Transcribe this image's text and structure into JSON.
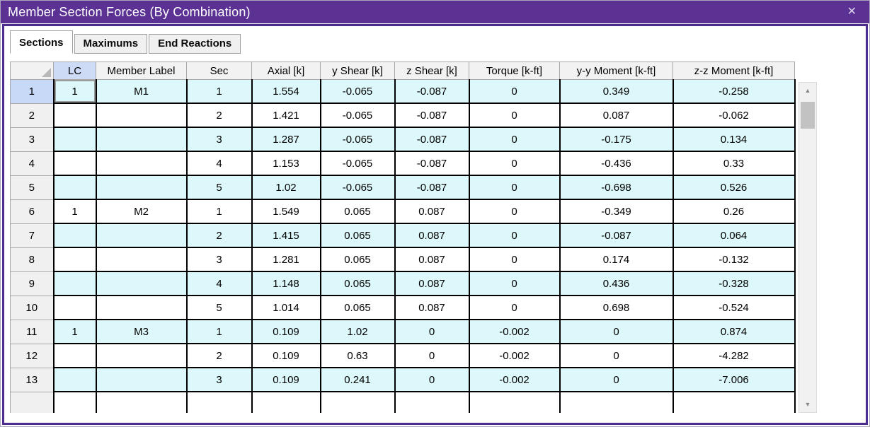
{
  "window": {
    "title": "Member Section Forces (By Combination)",
    "close_icon": "✕"
  },
  "tabs": [
    {
      "label": "Sections",
      "active": true
    },
    {
      "label": "Maximums",
      "active": false
    },
    {
      "label": "End Reactions",
      "active": false
    }
  ],
  "table": {
    "columns": [
      "LC",
      "Member Label",
      "Sec",
      "Axial [k]",
      "y Shear [k]",
      "z Shear [k]",
      "Torque [k-ft]",
      "y-y Moment [k-ft]",
      "z-z Moment [k-ft]"
    ],
    "rows": [
      {
        "num": "1",
        "selected": true,
        "active_cell": 0,
        "cells": [
          "1",
          "M1",
          "1",
          "1.554",
          "-0.065",
          "-0.087",
          "0",
          "0.349",
          "-0.258"
        ]
      },
      {
        "num": "2",
        "cells": [
          "",
          "",
          "2",
          "1.421",
          "-0.065",
          "-0.087",
          "0",
          "0.087",
          "-0.062"
        ]
      },
      {
        "num": "3",
        "cells": [
          "",
          "",
          "3",
          "1.287",
          "-0.065",
          "-0.087",
          "0",
          "-0.175",
          "0.134"
        ]
      },
      {
        "num": "4",
        "cells": [
          "",
          "",
          "4",
          "1.153",
          "-0.065",
          "-0.087",
          "0",
          "-0.436",
          "0.33"
        ]
      },
      {
        "num": "5",
        "cells": [
          "",
          "",
          "5",
          "1.02",
          "-0.065",
          "-0.087",
          "0",
          "-0.698",
          "0.526"
        ]
      },
      {
        "num": "6",
        "cells": [
          "1",
          "M2",
          "1",
          "1.549",
          "0.065",
          "0.087",
          "0",
          "-0.349",
          "0.26"
        ]
      },
      {
        "num": "7",
        "cells": [
          "",
          "",
          "2",
          "1.415",
          "0.065",
          "0.087",
          "0",
          "-0.087",
          "0.064"
        ]
      },
      {
        "num": "8",
        "cells": [
          "",
          "",
          "3",
          "1.281",
          "0.065",
          "0.087",
          "0",
          "0.174",
          "-0.132"
        ]
      },
      {
        "num": "9",
        "cells": [
          "",
          "",
          "4",
          "1.148",
          "0.065",
          "0.087",
          "0",
          "0.436",
          "-0.328"
        ]
      },
      {
        "num": "10",
        "cells": [
          "",
          "",
          "5",
          "1.014",
          "0.065",
          "0.087",
          "0",
          "0.698",
          "-0.524"
        ]
      },
      {
        "num": "11",
        "cells": [
          "1",
          "M3",
          "1",
          "0.109",
          "1.02",
          "0",
          "-0.002",
          "0",
          "0.874"
        ]
      },
      {
        "num": "12",
        "cells": [
          "",
          "",
          "2",
          "0.109",
          "0.63",
          "0",
          "-0.002",
          "0",
          "-4.282"
        ]
      },
      {
        "num": "13",
        "cells": [
          "",
          "",
          "3",
          "0.109",
          "0.241",
          "0",
          "-0.002",
          "0",
          "-7.006"
        ]
      }
    ]
  },
  "scrollbar": {
    "up_icon": "▲",
    "down_icon": "▼"
  },
  "colors": {
    "titlebar": "#5B3194",
    "frame": "#4E2B8E",
    "row_stripe": "#DDF8FA",
    "active_cell": "#97F297",
    "selected_row_header": "#C8D8F7",
    "lc_header": "#CDDBF7",
    "header_bg": "#F2F2F2",
    "grid_line": "#000000"
  }
}
